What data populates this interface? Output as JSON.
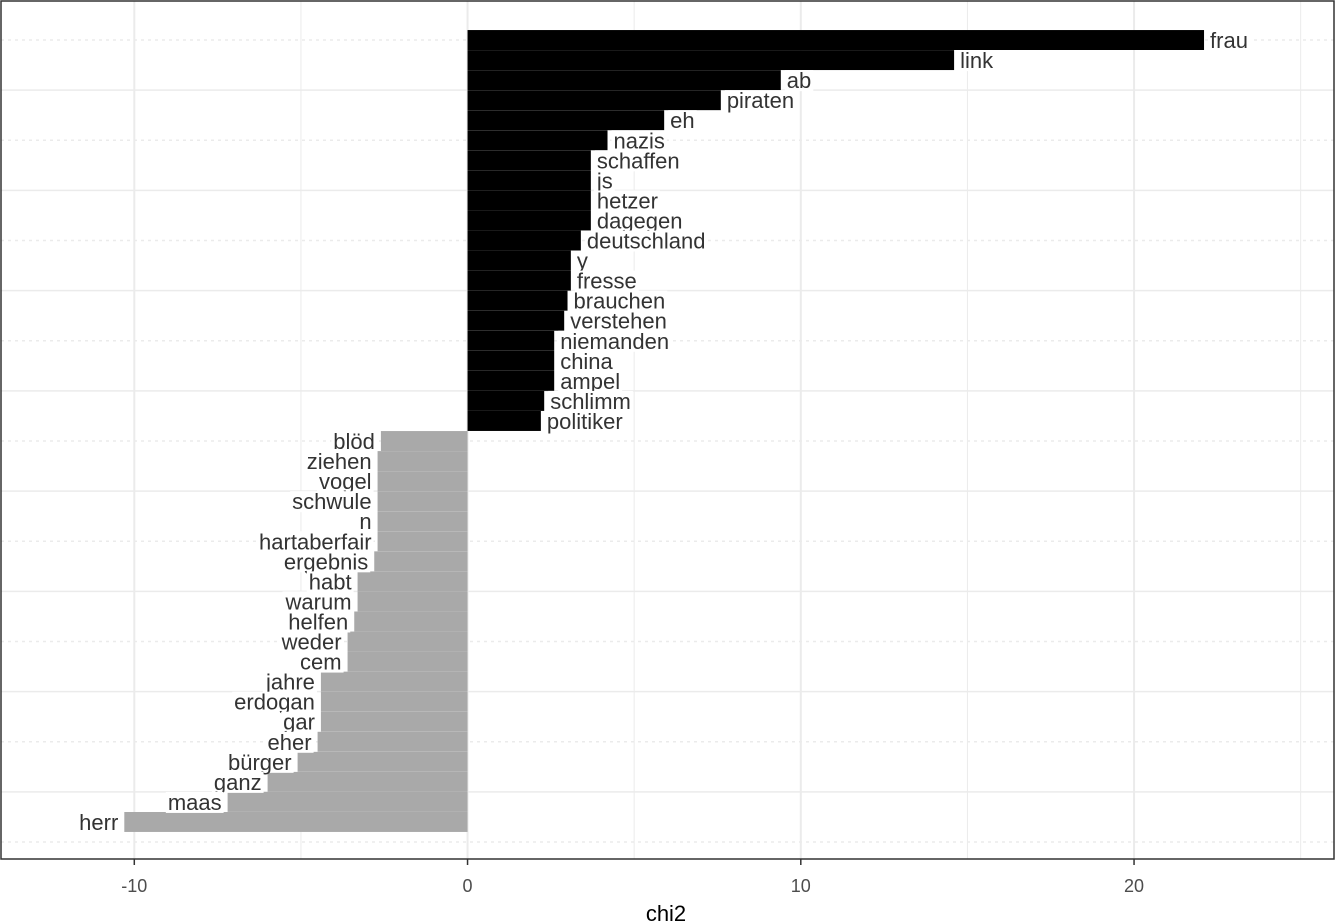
{
  "chart_data": {
    "type": "bar",
    "orientation": "horizontal",
    "xlabel": "chi2",
    "ylabel": "",
    "title": "",
    "xlim": [
      -14,
      26
    ],
    "x_ticks": [
      -10,
      0,
      10,
      20
    ],
    "grid": true,
    "legend": "none",
    "colors": {
      "positive": "#000000",
      "negative": "#a9a9a9",
      "panel_border": "#333333",
      "grid": "#ebebeb"
    },
    "bars": [
      {
        "label": "frau",
        "value": 22.1
      },
      {
        "label": "link",
        "value": 14.6
      },
      {
        "label": "ab",
        "value": 9.4
      },
      {
        "label": "piraten",
        "value": 7.6
      },
      {
        "label": "eh",
        "value": 5.9
      },
      {
        "label": "nazis",
        "value": 4.2
      },
      {
        "label": "schaffen",
        "value": 3.7
      },
      {
        "label": "js",
        "value": 3.7
      },
      {
        "label": "hetzer",
        "value": 3.7
      },
      {
        "label": "dagegen",
        "value": 3.7
      },
      {
        "label": "deutschland",
        "value": 3.4
      },
      {
        "label": "y",
        "value": 3.1
      },
      {
        "label": "fresse",
        "value": 3.1
      },
      {
        "label": "brauchen",
        "value": 3.0
      },
      {
        "label": "verstehen",
        "value": 2.9
      },
      {
        "label": "niemanden",
        "value": 2.6
      },
      {
        "label": "china",
        "value": 2.6
      },
      {
        "label": "ampel",
        "value": 2.6
      },
      {
        "label": "schlimm",
        "value": 2.3
      },
      {
        "label": "politiker",
        "value": 2.2
      },
      {
        "label": "blöd",
        "value": -2.6
      },
      {
        "label": "ziehen",
        "value": -2.7
      },
      {
        "label": "vogel",
        "value": -2.7
      },
      {
        "label": "schwule",
        "value": -2.7
      },
      {
        "label": "n",
        "value": -2.7
      },
      {
        "label": "hartaberfair",
        "value": -2.7
      },
      {
        "label": "ergebnis",
        "value": -2.8
      },
      {
        "label": "habt",
        "value": -3.3
      },
      {
        "label": "warum",
        "value": -3.3
      },
      {
        "label": "helfen",
        "value": -3.4
      },
      {
        "label": "weder",
        "value": -3.6
      },
      {
        "label": "cem",
        "value": -3.6
      },
      {
        "label": "jahre",
        "value": -4.4
      },
      {
        "label": "erdogan",
        "value": -4.4
      },
      {
        "label": "gar",
        "value": -4.4
      },
      {
        "label": "eher",
        "value": -4.5
      },
      {
        "label": "bürger",
        "value": -5.1
      },
      {
        "label": "ganz",
        "value": -6.0
      },
      {
        "label": "maas",
        "value": -7.2
      },
      {
        "label": "herr",
        "value": -10.3
      }
    ]
  }
}
